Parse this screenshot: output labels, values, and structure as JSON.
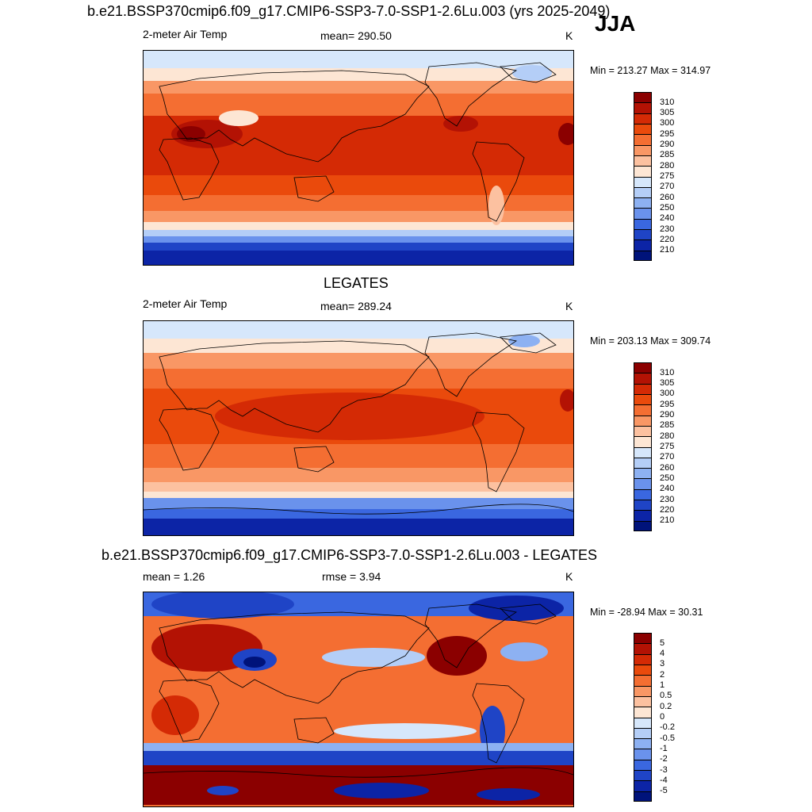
{
  "season": "JJA",
  "panels": [
    {
      "title": "b.e21.BSSP370cmip6.f09_g17.CMIP6-SSP3-7.0-SSP1-2.6Lu.003 (yrs 2025-2049)",
      "left_label": "2-meter Air Temp",
      "center_label": "mean= 290.50",
      "units": "K",
      "minmax": "Min = 213.27 Max = 314.97",
      "colorbar": {
        "ticks": [
          "310",
          "305",
          "300",
          "295",
          "290",
          "285",
          "280",
          "275",
          "270",
          "260",
          "250",
          "240",
          "230",
          "220",
          "210"
        ],
        "colors": [
          "#8b0000",
          "#b31204",
          "#d42a05",
          "#ea4a0c",
          "#f46e32",
          "#f99765",
          "#fcc1a0",
          "#fde6d4",
          "#d6e7fb",
          "#b4cef7",
          "#8db1f2",
          "#6a92ec",
          "#3a67e0",
          "#1f44c6",
          "#0c24a6",
          "#00137a"
        ]
      }
    },
    {
      "title": "LEGATES",
      "left_label": "2-meter Air Temp",
      "center_label": "mean= 289.24",
      "units": "K",
      "minmax": "Min = 203.13 Max = 309.74",
      "colorbar": {
        "ticks": [
          "310",
          "305",
          "300",
          "295",
          "290",
          "285",
          "280",
          "275",
          "270",
          "260",
          "250",
          "240",
          "230",
          "220",
          "210"
        ],
        "colors": [
          "#8b0000",
          "#b31204",
          "#d42a05",
          "#ea4a0c",
          "#f46e32",
          "#f99765",
          "#fcc1a0",
          "#fde6d4",
          "#d6e7fb",
          "#b4cef7",
          "#8db1f2",
          "#6a92ec",
          "#3a67e0",
          "#1f44c6",
          "#0c24a6",
          "#00137a"
        ]
      }
    },
    {
      "title": "b.e21.BSSP370cmip6.f09_g17.CMIP6-SSP3-7.0-SSP1-2.6Lu.003 - LEGATES",
      "left_label": "mean =   1.26",
      "center_label": "rmse =   3.94",
      "units": "K",
      "minmax": "Min = -28.94 Max =  30.31",
      "colorbar": {
        "ticks": [
          "5",
          "4",
          "3",
          "2",
          "1",
          "0.5",
          "0.2",
          "0",
          "-0.2",
          "-0.5",
          "-1",
          "-2",
          "-3",
          "-4",
          "-5"
        ],
        "colors": [
          "#8b0000",
          "#b31204",
          "#d42a05",
          "#ea4a0c",
          "#f46e32",
          "#f99765",
          "#fcc1a0",
          "#fde6d4",
          "#d6e7fb",
          "#b4cef7",
          "#8db1f2",
          "#6a92ec",
          "#3a67e0",
          "#1f44c6",
          "#0c24a6",
          "#00137a"
        ]
      }
    }
  ]
}
